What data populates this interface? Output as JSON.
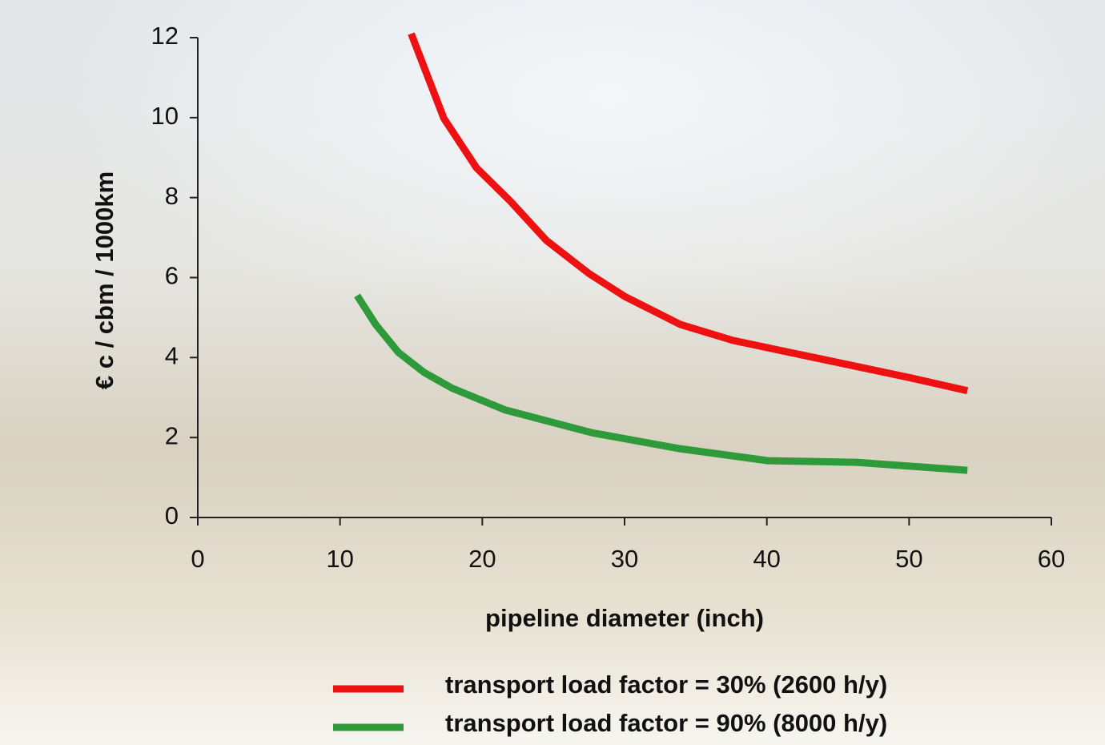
{
  "chart_data": {
    "type": "line",
    "xlabel": "pipeline diameter (inch)",
    "ylabel": "€ c / cbm / 1000km",
    "xlim": [
      0,
      60
    ],
    "xticks": [
      0,
      10,
      20,
      30,
      40,
      50,
      60
    ],
    "ylim": [
      0,
      12
    ],
    "yticks": [
      0,
      2,
      4,
      6,
      8,
      10,
      12
    ],
    "grid": false,
    "legend": "bottom",
    "series": [
      {
        "name": "transport load factor = 30% (2600 h/y)",
        "color": "#ee1111",
        "x": [
          15,
          17.3,
          19.6,
          22,
          24.5,
          27.5,
          30,
          33.9,
          37.6,
          42,
          46,
          50,
          54.1
        ],
        "values": [
          12.1,
          9.98,
          8.74,
          7.9,
          6.93,
          6.1,
          5.53,
          4.83,
          4.43,
          4.1,
          3.8,
          3.5,
          3.17
        ]
      },
      {
        "name": "transport load factor = 90% (8000 h/y)",
        "color": "#2e9a3a",
        "x": [
          11.2,
          12.5,
          14.1,
          15.9,
          17.9,
          21.6,
          27.7,
          33.9,
          40.1,
          46.3,
          54.1
        ],
        "values": [
          5.55,
          4.83,
          4.13,
          3.63,
          3.23,
          2.69,
          2.12,
          1.72,
          1.42,
          1.38,
          1.18
        ]
      }
    ]
  }
}
